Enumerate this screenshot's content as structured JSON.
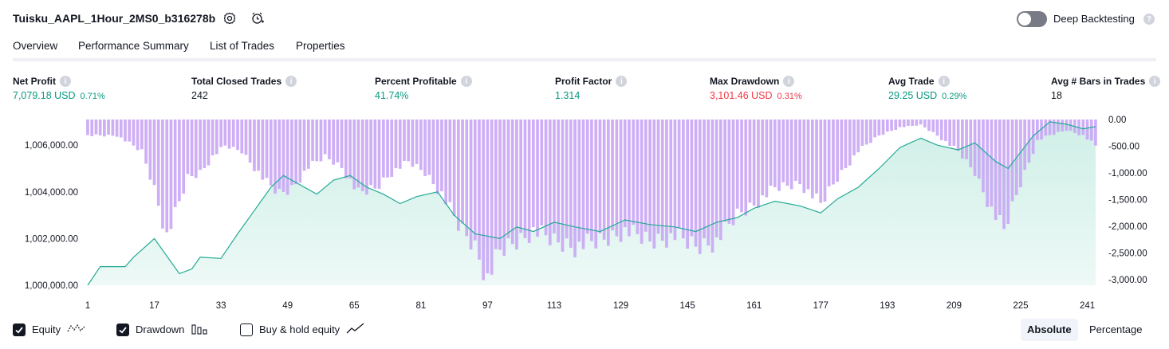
{
  "header": {
    "title": "Tuisku_AAPL_1Hour_2MS0_b316278b",
    "settings_icon": "gear-icon",
    "alert_icon": "add-alert-icon",
    "deep_backtesting_label": "Deep Backtesting",
    "deep_backtesting_on": false
  },
  "tabs": [
    {
      "label": "Overview",
      "active": true
    },
    {
      "label": "Performance Summary",
      "active": false
    },
    {
      "label": "List of Trades",
      "active": false
    },
    {
      "label": "Properties",
      "active": false
    }
  ],
  "metrics": [
    {
      "label": "Net Profit",
      "value": "7,079.18 USD",
      "sub": "0.71%",
      "tone": "pos"
    },
    {
      "label": "Total Closed Trades",
      "value": "242",
      "sub": "",
      "tone": "plain"
    },
    {
      "label": "Percent Profitable",
      "value": "41.74%",
      "sub": "",
      "tone": "pos"
    },
    {
      "label": "Profit Factor",
      "value": "1.314",
      "sub": "",
      "tone": "pos"
    },
    {
      "label": "Max Drawdown",
      "value": "3,101.46 USD",
      "sub": "0.31%",
      "tone": "neg"
    },
    {
      "label": "Avg Trade",
      "value": "29.25 USD",
      "sub": "0.29%",
      "tone": "pos"
    },
    {
      "label": "Avg # Bars in Trades",
      "value": "18",
      "sub": "",
      "tone": "plain"
    }
  ],
  "legend": {
    "equity_label": "Equity",
    "equity_checked": true,
    "drawdown_label": "Drawdown",
    "drawdown_checked": true,
    "buyhold_label": "Buy & hold equity",
    "buyhold_checked": false,
    "absolute_label": "Absolute",
    "percentage_label": "Percentage",
    "mode": "Absolute"
  },
  "colors": {
    "equity_line": "#22ab94",
    "equity_fill": "#cdeee6",
    "drawdown_bar": "#c9a6f5",
    "positive": "#089981",
    "negative": "#f23645"
  },
  "chart_data": {
    "type": "area",
    "x_ticks": [
      1,
      17,
      33,
      49,
      65,
      81,
      97,
      113,
      129,
      145,
      161,
      177,
      193,
      209,
      225,
      241
    ],
    "xlim": [
      1,
      243
    ],
    "left_axis": {
      "ticks": [
        "1,000,000.00",
        "1,002,000.00",
        "1,004,000.00",
        "1,006,000.00"
      ],
      "tick_values": [
        1000000,
        1002000,
        1004000,
        1006000
      ],
      "ylim": [
        1000000,
        1007100
      ]
    },
    "right_axis": {
      "ticks": [
        "0.00",
        "-500.00",
        "-1,000.00",
        "-1,500.00",
        "-2,000.00",
        "-2,500.00",
        "-3,000.00"
      ],
      "tick_values": [
        0,
        -500,
        -1000,
        -1500,
        -2000,
        -2500,
        -3000
      ],
      "ylim": [
        -3101.46,
        0
      ]
    },
    "series": [
      {
        "name": "Equity",
        "kind": "area",
        "axis": "left",
        "anchors": [
          [
            1,
            1000000
          ],
          [
            4,
            1000800
          ],
          [
            10,
            1000800
          ],
          [
            12,
            1001200
          ],
          [
            17,
            1002000
          ],
          [
            23,
            1000500
          ],
          [
            26,
            1000700
          ],
          [
            28,
            1001200
          ],
          [
            33,
            1001150
          ],
          [
            37,
            1002200
          ],
          [
            41,
            1003200
          ],
          [
            45,
            1004200
          ],
          [
            48,
            1004700
          ],
          [
            52,
            1004300
          ],
          [
            56,
            1003900
          ],
          [
            60,
            1004500
          ],
          [
            64,
            1004700
          ],
          [
            68,
            1004200
          ],
          [
            72,
            1003900
          ],
          [
            76,
            1003500
          ],
          [
            80,
            1003800
          ],
          [
            85,
            1004000
          ],
          [
            89,
            1003000
          ],
          [
            94,
            1002200
          ],
          [
            100,
            1002000
          ],
          [
            104,
            1002500
          ],
          [
            108,
            1002300
          ],
          [
            113,
            1002700
          ],
          [
            118,
            1002500
          ],
          [
            124,
            1002300
          ],
          [
            130,
            1002800
          ],
          [
            136,
            1002600
          ],
          [
            142,
            1002500
          ],
          [
            147,
            1002300
          ],
          [
            152,
            1002700
          ],
          [
            157,
            1002900
          ],
          [
            161,
            1003300
          ],
          [
            166,
            1003600
          ],
          [
            172,
            1003400
          ],
          [
            177,
            1003100
          ],
          [
            181,
            1003700
          ],
          [
            186,
            1004200
          ],
          [
            191,
            1005000
          ],
          [
            196,
            1005900
          ],
          [
            201,
            1006300
          ],
          [
            205,
            1006000
          ],
          [
            210,
            1005800
          ],
          [
            214,
            1006100
          ],
          [
            219,
            1005300
          ],
          [
            222,
            1005000
          ],
          [
            228,
            1006400
          ],
          [
            232,
            1007000
          ],
          [
            236,
            1006900
          ],
          [
            240,
            1006700
          ],
          [
            243,
            1006800
          ]
        ]
      },
      {
        "name": "Drawdown",
        "kind": "bar",
        "axis": "right",
        "anchors": [
          [
            1,
            -300
          ],
          [
            8,
            -300
          ],
          [
            14,
            -600
          ],
          [
            17,
            -1300
          ],
          [
            20,
            -2200
          ],
          [
            22,
            -1800
          ],
          [
            25,
            -1100
          ],
          [
            28,
            -1000
          ],
          [
            31,
            -700
          ],
          [
            34,
            -500
          ],
          [
            38,
            -600
          ],
          [
            41,
            -900
          ],
          [
            44,
            -1200
          ],
          [
            47,
            -1400
          ],
          [
            50,
            -1300
          ],
          [
            54,
            -900
          ],
          [
            58,
            -700
          ],
          [
            62,
            -900
          ],
          [
            66,
            -1400
          ],
          [
            70,
            -1300
          ],
          [
            74,
            -1000
          ],
          [
            78,
            -800
          ],
          [
            82,
            -1000
          ],
          [
            86,
            -1400
          ],
          [
            90,
            -2000
          ],
          [
            94,
            -2400
          ],
          [
            97,
            -3000
          ],
          [
            100,
            -2500
          ],
          [
            104,
            -2300
          ],
          [
            108,
            -2100
          ],
          [
            113,
            -2300
          ],
          [
            118,
            -2400
          ],
          [
            124,
            -2300
          ],
          [
            130,
            -2100
          ],
          [
            136,
            -2300
          ],
          [
            142,
            -2200
          ],
          [
            147,
            -2400
          ],
          [
            152,
            -2300
          ],
          [
            157,
            -1800
          ],
          [
            161,
            -1600
          ],
          [
            166,
            -1300
          ],
          [
            172,
            -1200
          ],
          [
            177,
            -1600
          ],
          [
            181,
            -1100
          ],
          [
            186,
            -600
          ],
          [
            191,
            -300
          ],
          [
            196,
            -150
          ],
          [
            201,
            -100
          ],
          [
            205,
            -300
          ],
          [
            210,
            -600
          ],
          [
            214,
            -1000
          ],
          [
            218,
            -1700
          ],
          [
            221,
            -2100
          ],
          [
            225,
            -1200
          ],
          [
            229,
            -400
          ],
          [
            232,
            -300
          ],
          [
            236,
            -200
          ],
          [
            240,
            -300
          ],
          [
            243,
            -500
          ]
        ]
      }
    ]
  }
}
